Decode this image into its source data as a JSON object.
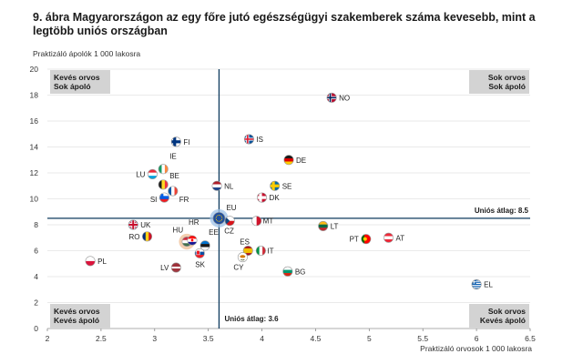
{
  "title": "9. ábra Magyarországon az egy főre jutó egészségügyi szakemberek száma kevesebb, mint a legtöbb uniós országban",
  "chart_data": {
    "type": "scatter",
    "xlabel": "Praktizáló orvosok 1 000 lakosra",
    "ylabel": "Praktizáló ápolók 1 000 lakosra",
    "xlim": [
      2,
      6.5
    ],
    "ylim": [
      0,
      20
    ],
    "xticks": [
      "2",
      "2.5",
      "3",
      "3.5",
      "4",
      "4.5",
      "5",
      "5.5",
      "6",
      "6.5"
    ],
    "yticks": [
      "0",
      "2",
      "4",
      "6",
      "8",
      "10",
      "12",
      "14",
      "16",
      "18",
      "20"
    ],
    "eu_average_x": 3.6,
    "eu_average_y": 8.5,
    "eu_average_x_label": "Uniós átlag: 3.6",
    "eu_average_y_label": "Uniós átlag: 8.5",
    "quadrants": {
      "top_left": [
        "Kevés orvos",
        "Sok ápoló"
      ],
      "top_right": [
        "Sok orvos",
        "Sok ápoló"
      ],
      "bottom_left": [
        "Kevés orvos",
        "Kevés ápoló"
      ],
      "bottom_right": [
        "Sok orvos",
        "Kevés ápoló"
      ]
    },
    "points": [
      {
        "label": "NO",
        "x": 4.65,
        "y": 17.8,
        "flag": "no"
      },
      {
        "label": "FI",
        "x": 3.2,
        "y": 14.4,
        "flag": "fi"
      },
      {
        "label": "IS",
        "x": 3.88,
        "y": 14.6,
        "flag": "is"
      },
      {
        "label": "DE",
        "x": 4.25,
        "y": 13.0,
        "flag": "de"
      },
      {
        "label": "IE",
        "x": 3.08,
        "y": 12.3,
        "flag": "ie"
      },
      {
        "label": "LU",
        "x": 2.98,
        "y": 11.9,
        "flag": "lu"
      },
      {
        "label": "BE",
        "x": 3.08,
        "y": 11.1,
        "flag": "be"
      },
      {
        "label": "NL",
        "x": 3.58,
        "y": 11.0,
        "flag": "nl"
      },
      {
        "label": "SE",
        "x": 4.12,
        "y": 11.0,
        "flag": "se"
      },
      {
        "label": "FR",
        "x": 3.17,
        "y": 10.6,
        "flag": "fr"
      },
      {
        "label": "SI",
        "x": 3.09,
        "y": 10.1,
        "flag": "si"
      },
      {
        "label": "DK",
        "x": 4.0,
        "y": 10.1,
        "flag": "dk"
      },
      {
        "label": "EU",
        "x": 3.6,
        "y": 8.5,
        "flag": "eu"
      },
      {
        "label": "MT",
        "x": 3.95,
        "y": 8.3,
        "flag": "mt"
      },
      {
        "label": "CZ",
        "x": 3.7,
        "y": 8.3,
        "flag": "cz"
      },
      {
        "label": "UK",
        "x": 2.8,
        "y": 8.0,
        "flag": "uk"
      },
      {
        "label": "LT",
        "x": 4.57,
        "y": 7.9,
        "flag": "lt"
      },
      {
        "label": "RO",
        "x": 2.93,
        "y": 7.1,
        "flag": "ro"
      },
      {
        "label": "PT",
        "x": 4.97,
        "y": 6.9,
        "flag": "pt"
      },
      {
        "label": "AT",
        "x": 5.18,
        "y": 7.0,
        "flag": "at"
      },
      {
        "label": "HU",
        "x": 3.3,
        "y": 6.7,
        "flag": "hu"
      },
      {
        "label": "HR",
        "x": 3.35,
        "y": 6.8,
        "flag": "hr"
      },
      {
        "label": "EE",
        "x": 3.47,
        "y": 6.4,
        "flag": "ee"
      },
      {
        "label": "SK",
        "x": 3.42,
        "y": 5.8,
        "flag": "sk"
      },
      {
        "label": "ES",
        "x": 3.87,
        "y": 6.0,
        "flag": "es"
      },
      {
        "label": "IT",
        "x": 3.99,
        "y": 6.0,
        "flag": "it"
      },
      {
        "label": "CY",
        "x": 3.82,
        "y": 5.5,
        "flag": "cy"
      },
      {
        "label": "PL",
        "x": 2.4,
        "y": 5.2,
        "flag": "pl"
      },
      {
        "label": "LV",
        "x": 3.2,
        "y": 4.7,
        "flag": "lv"
      },
      {
        "label": "BG",
        "x": 4.24,
        "y": 4.4,
        "flag": "bg"
      },
      {
        "label": "EL",
        "x": 6.0,
        "y": 3.4,
        "flag": "el"
      }
    ]
  }
}
